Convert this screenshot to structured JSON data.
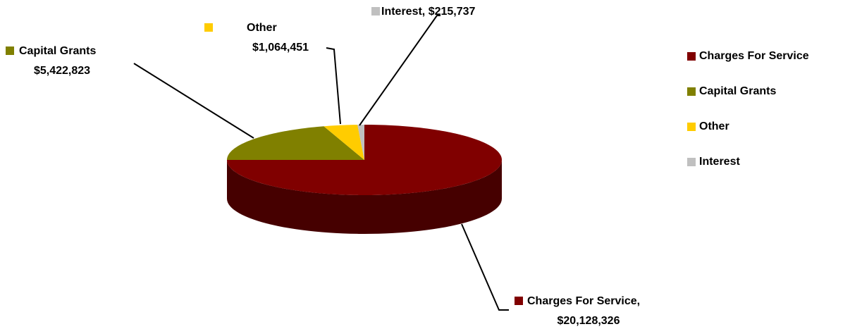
{
  "chart_data": {
    "type": "pie3d",
    "categories": [
      "Charges For Service",
      "Capital Grants",
      "Other",
      "Interest"
    ],
    "values": [
      20128326,
      5422823,
      1064451,
      215737
    ],
    "value_labels": [
      [
        "Charges For Service,",
        "$20,128,326"
      ],
      [
        "Capital Grants",
        "$5,422,823"
      ],
      [
        "Other",
        "$1,064,451"
      ],
      [
        "Interest, $215,737"
      ]
    ],
    "colors": [
      "#800000",
      "#808000",
      "#ffcc00",
      "#c0c0c0"
    ],
    "legend": "right"
  }
}
